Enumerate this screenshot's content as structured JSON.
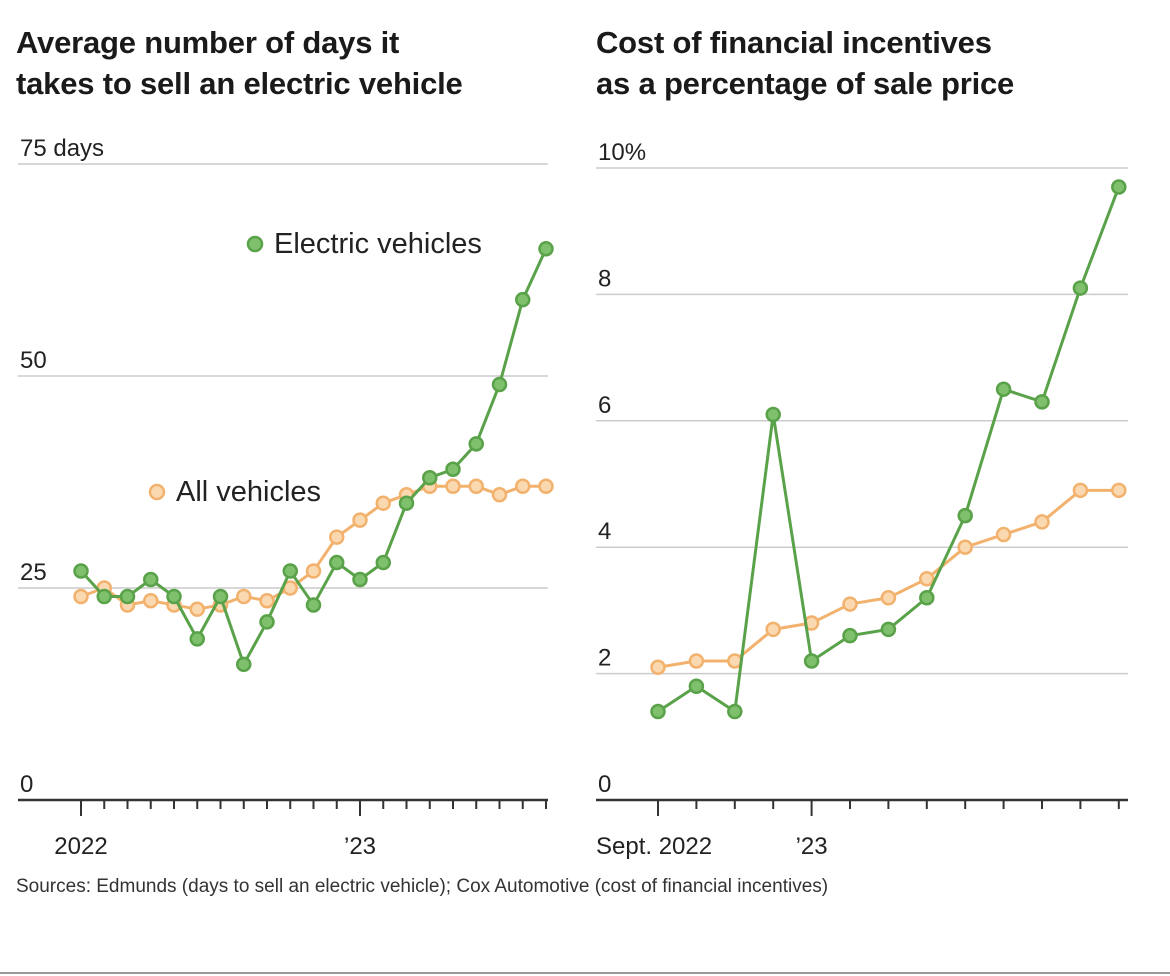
{
  "charts": {
    "left": {
      "title_line1": "Average number of days it",
      "title_line2": "takes to sell an electric vehicle"
    },
    "right": {
      "title_line1": "Cost of financial incentives",
      "title_line2": "as a percentage of sale price"
    }
  },
  "source_note": "Sources: Edmunds (days to sell an electric vehicle); Cox Automotive (cost of financial incentives)",
  "colors": {
    "electric": "#5aa24a",
    "electric_fill": "#7fc06c",
    "all": "#f2b26e",
    "all_fill": "#fbd9b0",
    "grid": "#cccccc",
    "axis": "#333333"
  },
  "chart_data": [
    {
      "type": "line",
      "title": "Average number of days it takes to sell an electric vehicle",
      "y_unit_label": "days",
      "ylim": [
        0,
        75
      ],
      "y_ticks": [
        "75 days",
        "50",
        "25",
        "0"
      ],
      "y_tick_values": [
        75,
        50,
        25,
        0
      ],
      "x_labels": [
        "2022",
        "’23"
      ],
      "x_label_indices": [
        0,
        12
      ],
      "grid": true,
      "series": [
        {
          "name": "Electric vehicles",
          "values": [
            27,
            24,
            24,
            26,
            24,
            19,
            24,
            16,
            21,
            27,
            23,
            28,
            26,
            28,
            35,
            38,
            39,
            42,
            49,
            59,
            65
          ]
        },
        {
          "name": "All vehicles",
          "values": [
            24,
            25,
            23,
            23.5,
            23,
            22.5,
            23,
            24,
            23.5,
            25,
            27,
            31,
            33,
            35,
            36,
            37,
            37,
            37,
            36,
            37,
            37
          ]
        }
      ]
    },
    {
      "type": "line",
      "title": "Cost of financial incentives as a percentage of sale price",
      "ylim": [
        0,
        10
      ],
      "y_ticks": [
        "10%",
        "8",
        "6",
        "4",
        "2",
        "0"
      ],
      "y_tick_values": [
        10,
        8,
        6,
        4,
        2,
        0
      ],
      "x_labels": [
        "Sept. 2022",
        "’23"
      ],
      "x_label_indices": [
        0,
        4
      ],
      "grid": true,
      "series": [
        {
          "name": "Electric vehicles",
          "values": [
            1.4,
            1.8,
            1.4,
            6.1,
            2.2,
            2.6,
            2.7,
            3.2,
            4.5,
            6.5,
            6.3,
            8.1,
            9.7
          ]
        },
        {
          "name": "All vehicles",
          "values": [
            2.1,
            2.2,
            2.2,
            2.7,
            2.8,
            3.1,
            3.2,
            3.5,
            4.0,
            4.2,
            4.4,
            4.9,
            4.9
          ]
        }
      ]
    }
  ]
}
